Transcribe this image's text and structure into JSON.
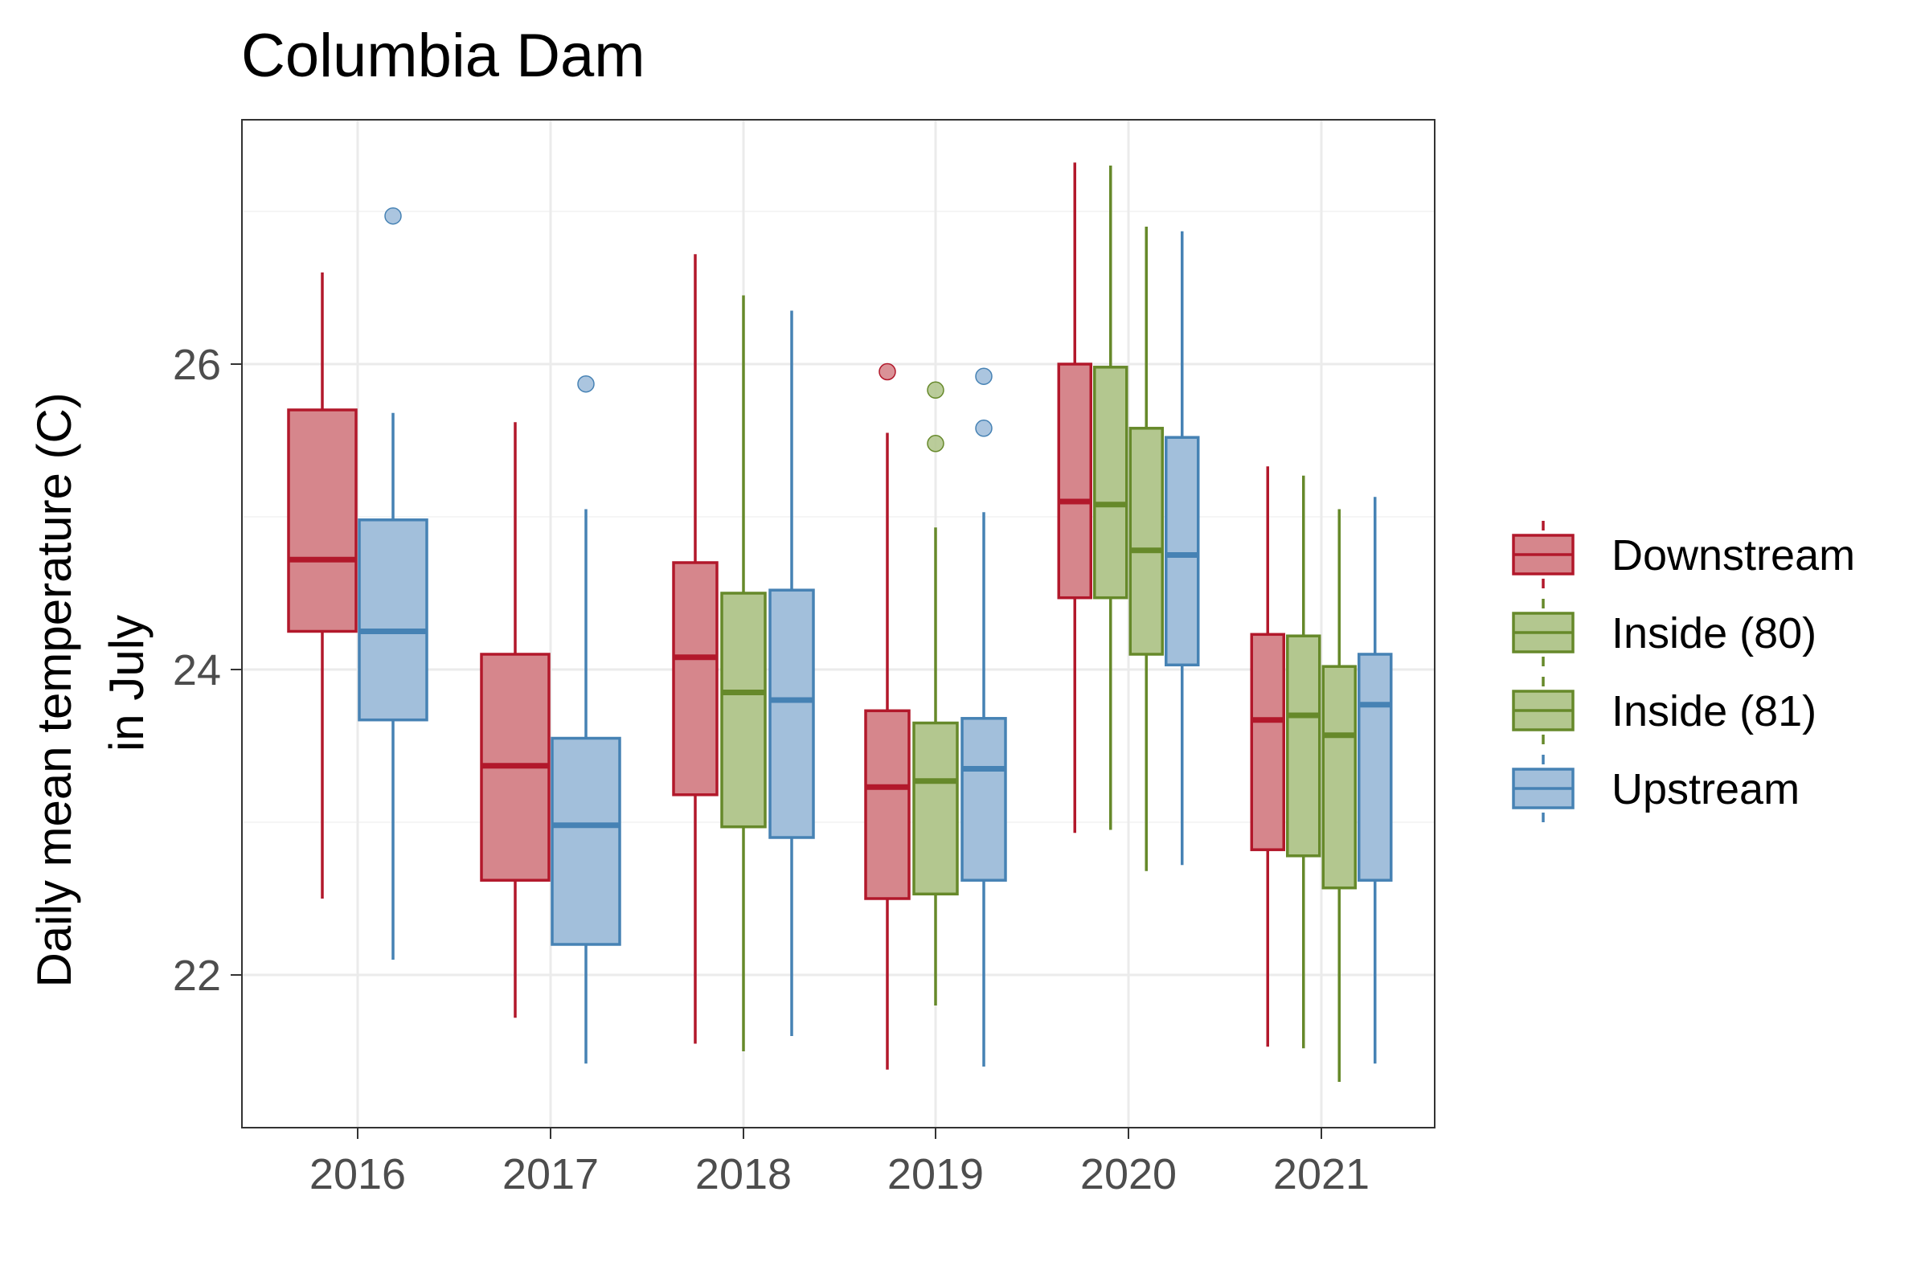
{
  "chart_data": {
    "type": "boxplot",
    "title": "Columbia Dam",
    "xlabel": "",
    "ylabel_lines": [
      "Daily mean temperature (C)",
      "in July"
    ],
    "ylim": [
      21.0,
      27.6
    ],
    "yticks": [
      22,
      24,
      26
    ],
    "grid": true,
    "legend_position": "right",
    "categories": [
      "2016",
      "2017",
      "2018",
      "2019",
      "2020",
      "2021"
    ],
    "series": [
      {
        "name": "Downstream",
        "color": "#b2182b",
        "fill": "#d6868c"
      },
      {
        "name": "Inside (80)",
        "color": "#66892a",
        "fill": "#b3c78f"
      },
      {
        "name": "Inside (81)",
        "color": "#66892a",
        "fill": "#b3c78f"
      },
      {
        "name": "Upstream",
        "color": "#4682b4",
        "fill": "#a2bfdb"
      }
    ],
    "boxes": [
      {
        "year": "2016",
        "series": "Downstream",
        "min": 22.5,
        "q1": 24.25,
        "median": 24.72,
        "q3": 25.7,
        "max": 26.6,
        "outliers": []
      },
      {
        "year": "2016",
        "series": "Upstream",
        "min": 22.1,
        "q1": 23.67,
        "median": 24.25,
        "q3": 24.98,
        "max": 25.68,
        "outliers": [
          26.97
        ]
      },
      {
        "year": "2017",
        "series": "Downstream",
        "min": 21.72,
        "q1": 22.62,
        "median": 23.37,
        "q3": 24.1,
        "max": 25.62,
        "outliers": []
      },
      {
        "year": "2017",
        "series": "Upstream",
        "min": 21.42,
        "q1": 22.2,
        "median": 22.98,
        "q3": 23.55,
        "max": 25.05,
        "outliers": [
          25.87
        ]
      },
      {
        "year": "2018",
        "series": "Downstream",
        "min": 21.55,
        "q1": 23.18,
        "median": 24.08,
        "q3": 24.7,
        "max": 26.72,
        "outliers": []
      },
      {
        "year": "2018",
        "series": "Inside (81)",
        "min": 21.5,
        "q1": 22.97,
        "median": 23.85,
        "q3": 24.5,
        "max": 26.45,
        "outliers": []
      },
      {
        "year": "2018",
        "series": "Upstream",
        "min": 21.6,
        "q1": 22.9,
        "median": 23.8,
        "q3": 24.52,
        "max": 26.35,
        "outliers": []
      },
      {
        "year": "2019",
        "series": "Downstream",
        "min": 21.38,
        "q1": 22.5,
        "median": 23.23,
        "q3": 23.73,
        "max": 25.55,
        "outliers": [
          25.95
        ]
      },
      {
        "year": "2019",
        "series": "Inside (81)",
        "min": 21.8,
        "q1": 22.53,
        "median": 23.27,
        "q3": 23.65,
        "max": 24.93,
        "outliers": [
          25.48,
          25.83
        ]
      },
      {
        "year": "2019",
        "series": "Upstream",
        "min": 21.4,
        "q1": 22.62,
        "median": 23.35,
        "q3": 23.68,
        "max": 25.03,
        "outliers": [
          25.58,
          25.92
        ]
      },
      {
        "year": "2020",
        "series": "Downstream",
        "min": 22.93,
        "q1": 24.47,
        "median": 25.1,
        "q3": 26.0,
        "max": 27.32,
        "outliers": []
      },
      {
        "year": "2020",
        "series": "Inside (80)",
        "min": 22.95,
        "q1": 24.47,
        "median": 25.08,
        "q3": 25.98,
        "max": 27.3,
        "outliers": []
      },
      {
        "year": "2020",
        "series": "Inside (81)",
        "min": 22.68,
        "q1": 24.1,
        "median": 24.78,
        "q3": 25.58,
        "max": 26.9,
        "outliers": []
      },
      {
        "year": "2020",
        "series": "Upstream",
        "min": 22.72,
        "q1": 24.03,
        "median": 24.75,
        "q3": 25.52,
        "max": 26.87,
        "outliers": []
      },
      {
        "year": "2021",
        "series": "Downstream",
        "min": 21.53,
        "q1": 22.82,
        "median": 23.67,
        "q3": 24.23,
        "max": 25.33,
        "outliers": []
      },
      {
        "year": "2021",
        "series": "Inside (80)",
        "min": 21.52,
        "q1": 22.78,
        "median": 23.7,
        "q3": 24.22,
        "max": 25.27,
        "outliers": []
      },
      {
        "year": "2021",
        "series": "Inside (81)",
        "min": 21.3,
        "q1": 22.57,
        "median": 23.57,
        "q3": 24.02,
        "max": 25.05,
        "outliers": []
      },
      {
        "year": "2021",
        "series": "Upstream",
        "min": 21.42,
        "q1": 22.62,
        "median": 23.77,
        "q3": 24.1,
        "max": 25.13,
        "outliers": []
      }
    ]
  }
}
